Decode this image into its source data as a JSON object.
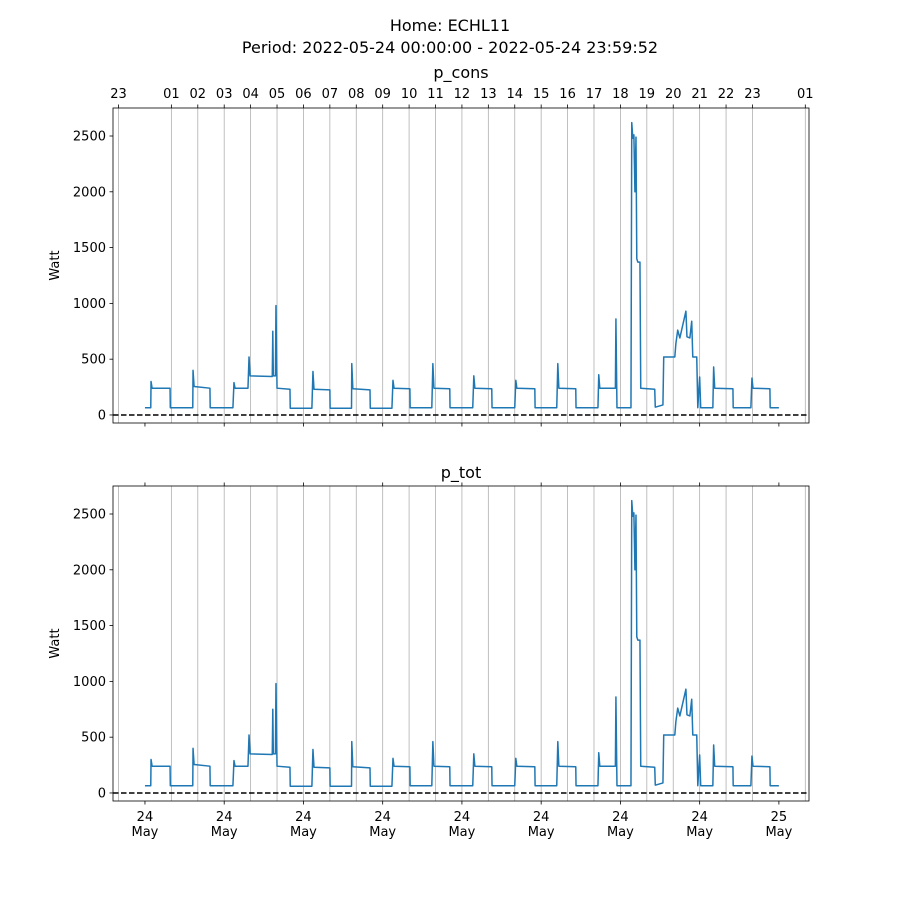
{
  "figure_title": "Home: ECHL11",
  "figure_subtitle": "Period: 2022-05-24 00:00:00 - 2022-05-24 23:59:52",
  "chart_data": [
    {
      "type": "line",
      "title": "p_cons",
      "ylabel": "Watt",
      "color": "#1f77b4",
      "xlim": [
        -1.21,
        25.14
      ],
      "ylim": [
        -72,
        2751
      ],
      "yticks": [
        0,
        500,
        1000,
        1500,
        2000,
        2500
      ],
      "hline": 0,
      "grid": true,
      "x2ticks": [
        {
          "value": -1,
          "label": "23"
        },
        {
          "value": 1,
          "label": "01"
        },
        {
          "value": 2,
          "label": "02"
        },
        {
          "value": 3,
          "label": "03"
        },
        {
          "value": 4,
          "label": "04"
        },
        {
          "value": 5,
          "label": "05"
        },
        {
          "value": 6,
          "label": "06"
        },
        {
          "value": 7,
          "label": "07"
        },
        {
          "value": 8,
          "label": "08"
        },
        {
          "value": 9,
          "label": "09"
        },
        10,
        11,
        12,
        13,
        14,
        15,
        16,
        17,
        18,
        19,
        20,
        21,
        22,
        23,
        {
          "value": 25,
          "label": "01"
        }
      ],
      "x": [
        0,
        0.22,
        0.23,
        0.27,
        0.95,
        0.96,
        1.81,
        1.82,
        1.86,
        2.46,
        2.47,
        3.33,
        3.37,
        3.41,
        3.9,
        3.94,
        3.98,
        4.82,
        4.84,
        4.86,
        4.94,
        4.96,
        5.0,
        5.49,
        5.5,
        6.32,
        6.36,
        6.4,
        7.0,
        7.01,
        7.82,
        7.83,
        7.87,
        8.52,
        8.53,
        9.35,
        9.39,
        9.43,
        10.03,
        10.04,
        10.86,
        10.9,
        10.94,
        11.54,
        11.55,
        12.41,
        12.45,
        12.49,
        13.13,
        13.14,
        14.0,
        14.04,
        14.08,
        14.76,
        14.77,
        15.59,
        15.63,
        15.67,
        16.31,
        16.32,
        17.15,
        17.18,
        17.22,
        17.81,
        17.83,
        17.87,
        18.4,
        18.43,
        18.47,
        18.51,
        18.55,
        18.59,
        18.62,
        18.66,
        18.74,
        18.77,
        19.3,
        19.32,
        19.61,
        19.64,
        20.06,
        20.1,
        20.17,
        20.25,
        20.48,
        20.52,
        20.63,
        20.7,
        20.74,
        20.89,
        20.93,
        21.0,
        21.04,
        21.5,
        21.53,
        21.57,
        22.26,
        22.27,
        22.94,
        22.98,
        23.02,
        23.66,
        23.67,
        24.0
      ],
      "values": [
        65,
        65,
        300,
        240,
        240,
        65,
        65,
        400,
        255,
        240,
        65,
        65,
        290,
        240,
        240,
        520,
        350,
        345,
        750,
        350,
        350,
        980,
        240,
        230,
        60,
        60,
        390,
        230,
        225,
        60,
        60,
        460,
        235,
        225,
        60,
        60,
        310,
        240,
        235,
        65,
        65,
        460,
        240,
        235,
        65,
        65,
        350,
        240,
        235,
        65,
        65,
        310,
        240,
        235,
        65,
        65,
        460,
        240,
        235,
        65,
        65,
        360,
        240,
        240,
        860,
        65,
        65,
        2620,
        2480,
        2510,
        2000,
        2490,
        1400,
        1370,
        1370,
        240,
        230,
        70,
        90,
        520,
        520,
        640,
        760,
        690,
        930,
        700,
        690,
        840,
        520,
        520,
        65,
        340,
        65,
        65,
        430,
        240,
        235,
        65,
        65,
        330,
        240,
        235,
        65,
        65
      ]
    },
    {
      "type": "line",
      "title": "p_tot",
      "ylabel": "Watt",
      "color": "#1f77b4",
      "xlim": [
        -1.21,
        25.14
      ],
      "ylim": [
        -72,
        2751
      ],
      "yticks": [
        0,
        500,
        1000,
        1500,
        2000,
        2500
      ],
      "hline": 0,
      "grid": true,
      "xticks": [
        {
          "value": 0,
          "label": "24\nMay"
        },
        {
          "value": 3,
          "label": "24\nMay"
        },
        {
          "value": 6,
          "label": "24\nMay"
        },
        {
          "value": 9,
          "label": "24\nMay"
        },
        {
          "value": 12,
          "label": "24\nMay"
        },
        {
          "value": 15,
          "label": "24\nMay"
        },
        {
          "value": 18,
          "label": "24\nMay"
        },
        {
          "value": 21,
          "label": "24\nMay"
        },
        {
          "value": 24,
          "label": "25\nMay"
        }
      ],
      "x": [
        0,
        0.22,
        0.23,
        0.27,
        0.95,
        0.96,
        1.81,
        1.82,
        1.86,
        2.46,
        2.47,
        3.33,
        3.37,
        3.41,
        3.9,
        3.94,
        3.98,
        4.82,
        4.84,
        4.86,
        4.94,
        4.96,
        5.0,
        5.49,
        5.5,
        6.32,
        6.36,
        6.4,
        7.0,
        7.01,
        7.82,
        7.83,
        7.87,
        8.52,
        8.53,
        9.35,
        9.39,
        9.43,
        10.03,
        10.04,
        10.86,
        10.9,
        10.94,
        11.54,
        11.55,
        12.41,
        12.45,
        12.49,
        13.13,
        13.14,
        14.0,
        14.04,
        14.08,
        14.76,
        14.77,
        15.59,
        15.63,
        15.67,
        16.31,
        16.32,
        17.15,
        17.18,
        17.22,
        17.81,
        17.83,
        17.87,
        18.4,
        18.43,
        18.47,
        18.51,
        18.55,
        18.59,
        18.62,
        18.66,
        18.74,
        18.77,
        19.3,
        19.32,
        19.61,
        19.64,
        20.06,
        20.1,
        20.17,
        20.25,
        20.48,
        20.52,
        20.63,
        20.7,
        20.74,
        20.89,
        20.93,
        21.0,
        21.04,
        21.5,
        21.53,
        21.57,
        22.26,
        22.27,
        22.94,
        22.98,
        23.02,
        23.66,
        23.67,
        24.0
      ],
      "values": [
        65,
        65,
        300,
        240,
        240,
        65,
        65,
        400,
        255,
        240,
        65,
        65,
        290,
        240,
        240,
        520,
        350,
        345,
        750,
        350,
        350,
        980,
        240,
        230,
        60,
        60,
        390,
        230,
        225,
        60,
        60,
        460,
        235,
        225,
        60,
        60,
        310,
        240,
        235,
        65,
        65,
        460,
        240,
        235,
        65,
        65,
        350,
        240,
        235,
        65,
        65,
        310,
        240,
        235,
        65,
        65,
        460,
        240,
        235,
        65,
        65,
        360,
        240,
        240,
        860,
        65,
        65,
        2620,
        2480,
        2510,
        2000,
        2490,
        1400,
        1370,
        1370,
        240,
        230,
        70,
        90,
        520,
        520,
        640,
        760,
        690,
        930,
        700,
        690,
        840,
        520,
        520,
        65,
        340,
        65,
        65,
        430,
        240,
        235,
        65,
        65,
        330,
        240,
        235,
        65,
        65
      ]
    }
  ]
}
